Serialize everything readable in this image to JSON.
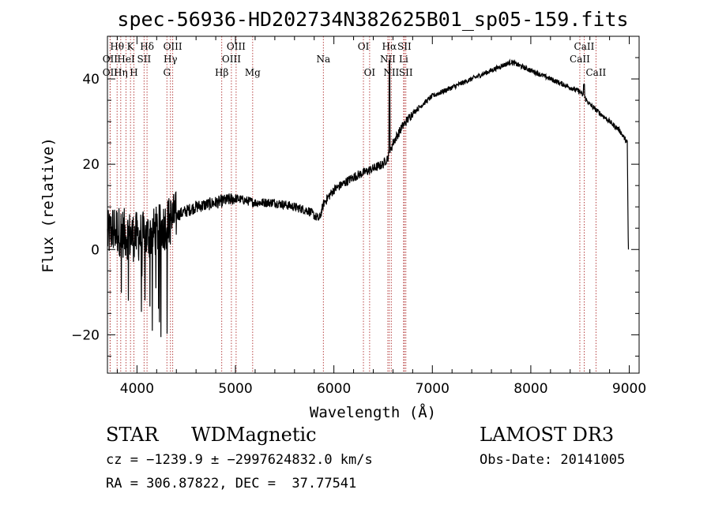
{
  "chart_data": {
    "type": "line",
    "title": "spec-56936-HD202734N382625B01_sp05-159.fits",
    "xlabel": "Wavelength (Å)",
    "ylabel": "Flux (relative)",
    "xlim": [
      3700,
      9100
    ],
    "ylim": [
      -29,
      50
    ],
    "xticks": [
      4000,
      5000,
      6000,
      7000,
      8000,
      9000
    ],
    "yticks": [
      -20,
      0,
      20,
      40
    ],
    "ytick_labels": [
      "−20",
      "0",
      "20",
      "40"
    ],
    "grid": false,
    "spectrum_anchors": {
      "x": [
        3700,
        3760,
        3850,
        3950,
        4100,
        4250,
        4400,
        4600,
        4800,
        5000,
        5200,
        5400,
        5600,
        5750,
        5850,
        5900,
        6000,
        6200,
        6400,
        6500,
        6560,
        6600,
        6650,
        6700,
        6800,
        7000,
        7200,
        7400,
        7600,
        7800,
        7900,
        8000,
        8200,
        8400,
        8500,
        8600,
        8800,
        8900,
        8980,
        8990
      ],
      "y": [
        3,
        5,
        4,
        3,
        3,
        5,
        8,
        10,
        11,
        12,
        11,
        11,
        10,
        9,
        7,
        11,
        14,
        17,
        19,
        20,
        22,
        25,
        27,
        29,
        32,
        36,
        38,
        40,
        42,
        44,
        43,
        42,
        40,
        38,
        37,
        34,
        30,
        28,
        25,
        0
      ]
    },
    "spectral_lines": [
      {
        "label": "Hθ",
        "wavelength": 3798,
        "row": 1
      },
      {
        "label": "OII",
        "wavelength": 3727,
        "row": 2
      },
      {
        "label": "OII",
        "wavelength": 3727,
        "row": 3
      },
      {
        "label": "K",
        "wavelength": 3934,
        "row": 1
      },
      {
        "label": "HeI",
        "wavelength": 3889,
        "row": 2
      },
      {
        "label": "Hη",
        "wavelength": 3835,
        "row": 3
      },
      {
        "label": "Hδ",
        "wavelength": 4102,
        "row": 1
      },
      {
        "label": "SII",
        "wavelength": 4072,
        "row": 2
      },
      {
        "label": "H",
        "wavelength": 3969,
        "row": 3
      },
      {
        "label": "OIII",
        "wavelength": 4363,
        "row": 1
      },
      {
        "label": "Hγ",
        "wavelength": 4340,
        "row": 2
      },
      {
        "label": "G",
        "wavelength": 4304,
        "row": 3
      },
      {
        "label": "OIII",
        "wavelength": 5007,
        "row": 1
      },
      {
        "label": "OIII",
        "wavelength": 4959,
        "row": 2
      },
      {
        "label": "Hβ",
        "wavelength": 4861,
        "row": 3
      },
      {
        "label": "Mg",
        "wavelength": 5175,
        "row": 3
      },
      {
        "label": "Na",
        "wavelength": 5893,
        "row": 2
      },
      {
        "label": "OI",
        "wavelength": 6300,
        "row": 1
      },
      {
        "label": "OI",
        "wavelength": 6363,
        "row": 3
      },
      {
        "label": "Hα",
        "wavelength": 6563,
        "row": 1
      },
      {
        "label": "NII",
        "wavelength": 6548,
        "row": 2
      },
      {
        "label": "NII",
        "wavelength": 6583,
        "row": 3
      },
      {
        "label": "SII",
        "wavelength": 6716,
        "row": 1
      },
      {
        "label": "Li",
        "wavelength": 6708,
        "row": 2
      },
      {
        "label": "SII",
        "wavelength": 6731,
        "row": 3
      },
      {
        "label": "CaII",
        "wavelength": 8542,
        "row": 1
      },
      {
        "label": "CaII",
        "wavelength": 8498,
        "row": 2
      },
      {
        "label": "CaII",
        "wavelength": 8662,
        "row": 3
      }
    ]
  },
  "footer": {
    "class_label": "STAR",
    "subclass_label": "WDMagnetic",
    "survey_label": "LAMOST DR3",
    "redshift_line": "cz = −1239.9 ± −2997624832.0 km/s",
    "obs_date_line": "Obs-Date: 20141005",
    "coords_line": "RA = 306.87822, DEC =  37.77541"
  },
  "colors": {
    "spectrum": "#000000",
    "line_markers": "#b03030",
    "axes": "#000000",
    "background": "#ffffff"
  }
}
